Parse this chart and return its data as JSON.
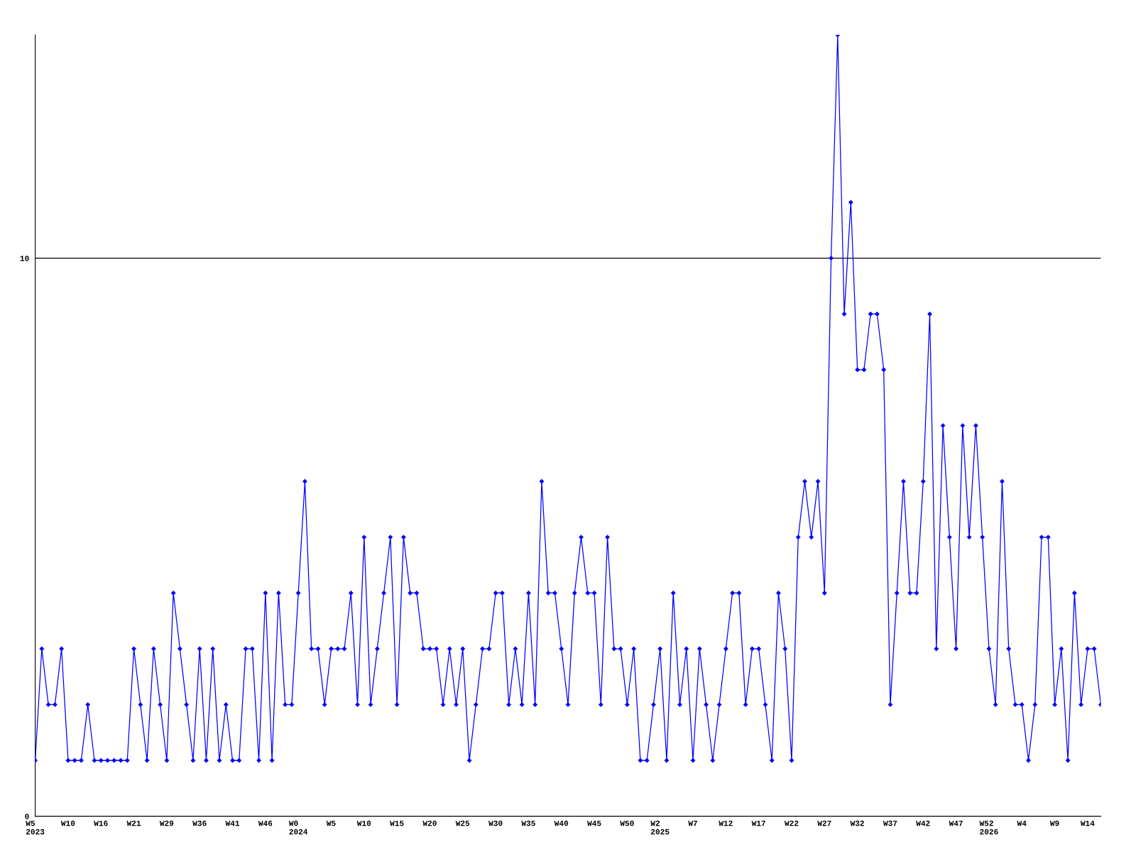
{
  "chart_data": {
    "type": "line",
    "categories": [
      "W5\n2023",
      null,
      null,
      null,
      null,
      "W10",
      null,
      null,
      null,
      null,
      "W16",
      null,
      null,
      null,
      null,
      "W21",
      null,
      null,
      null,
      null,
      "W29",
      null,
      null,
      null,
      null,
      "W36",
      null,
      null,
      null,
      null,
      "W41",
      null,
      null,
      null,
      null,
      "W46",
      null,
      null,
      null,
      null,
      "W0\n2024",
      null,
      null,
      null,
      null,
      "W5",
      null,
      null,
      null,
      null,
      "W10",
      null,
      null,
      null,
      null,
      "W15",
      null,
      null,
      null,
      null,
      "W20",
      null,
      null,
      null,
      null,
      "W25",
      null,
      null,
      null,
      null,
      "W30",
      null,
      null,
      null,
      null,
      "W35",
      null,
      null,
      null,
      null,
      "W40",
      null,
      null,
      null,
      null,
      "W45",
      null,
      null,
      null,
      null,
      "W50",
      null,
      null,
      null,
      null,
      "W2\n2025",
      null,
      null,
      null,
      null,
      "W7",
      null,
      null,
      null,
      null,
      "W12",
      null,
      null,
      null,
      null,
      "W17",
      null,
      null,
      null,
      null,
      "W22",
      null,
      null,
      null,
      null,
      "W27",
      null,
      null,
      null,
      null,
      "W32",
      null,
      null,
      null,
      null,
      "W37",
      null,
      null,
      null,
      null,
      "W42",
      null,
      null,
      null,
      null,
      "W47",
      null,
      null,
      null,
      null,
      "W52\n2026",
      null,
      null,
      null,
      null,
      "W4",
      null,
      null,
      null,
      null,
      "W9",
      null,
      null,
      null,
      null,
      "W14",
      null,
      null
    ],
    "series": [
      {
        "color": "#0000ff",
        "values": [
          1,
          3,
          2,
          2,
          3,
          1,
          1,
          1,
          2,
          1,
          1,
          1,
          1,
          1,
          1,
          3,
          2,
          1,
          3,
          2,
          1,
          4,
          3,
          2,
          1,
          3,
          1,
          3,
          1,
          2,
          1,
          1,
          3,
          3,
          1,
          4,
          1,
          4,
          2,
          2,
          4,
          6,
          3,
          3,
          2,
          3,
          3,
          3,
          4,
          2,
          5,
          2,
          3,
          4,
          5,
          2,
          5,
          4,
          4,
          3,
          3,
          3,
          2,
          3,
          2,
          3,
          1,
          2,
          3,
          3,
          4,
          4,
          2,
          3,
          2,
          4,
          2,
          6,
          4,
          4,
          3,
          2,
          4,
          5,
          4,
          4,
          2,
          5,
          3,
          3,
          2,
          3,
          1,
          1,
          2,
          3,
          1,
          4,
          2,
          3,
          1,
          3,
          2,
          1,
          2,
          3,
          4,
          4,
          2,
          3,
          3,
          2,
          1,
          4,
          3,
          1,
          5,
          6,
          5,
          6,
          4,
          10,
          14,
          9,
          11,
          8,
          8,
          9,
          9,
          8,
          2,
          4,
          6,
          4,
          4,
          6,
          9,
          3,
          7,
          5,
          3,
          7,
          5,
          7,
          5,
          3,
          2,
          6,
          3,
          2,
          2,
          1,
          2,
          5,
          5,
          2,
          3,
          1,
          4,
          2,
          3,
          3,
          2
        ]
      }
    ],
    "ylim": [
      0,
      14
    ],
    "yticks": [
      0,
      10
    ],
    "grid": "y",
    "marker": "diamond",
    "line_style": "solid"
  }
}
